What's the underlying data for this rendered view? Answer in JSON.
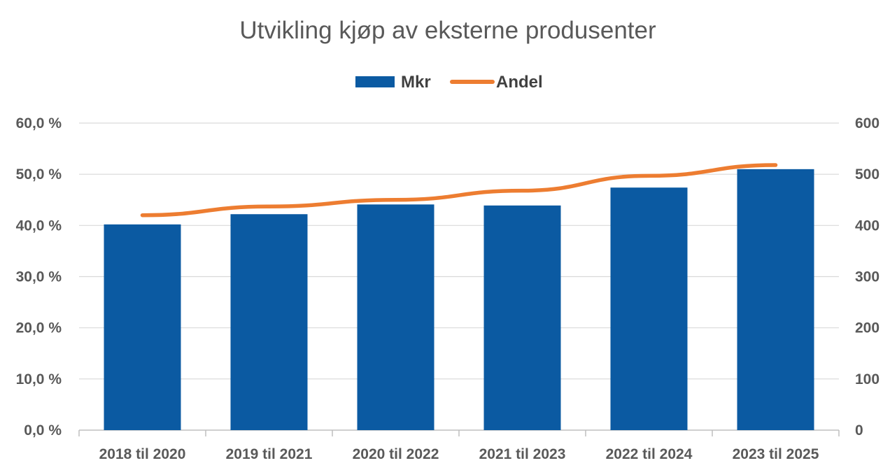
{
  "chart_data": {
    "type": "bar",
    "title": "Utvikling kjøp av eksterne produsenter",
    "categories": [
      "2018 til 2020",
      "2019 til 2021",
      "2020 til 2022",
      "2021 til 2023",
      "2022 til 2024",
      "2023 til 2025"
    ],
    "series": [
      {
        "name": "Mkr",
        "type": "bar",
        "axis": "right",
        "values": [
          402,
          422,
          441,
          439,
          474,
          510
        ],
        "color": "#0B5AA2"
      },
      {
        "name": "Andel",
        "type": "line",
        "axis": "left",
        "values": [
          42.0,
          43.7,
          45.0,
          46.8,
          49.7,
          51.8
        ],
        "color": "#ED7D31"
      }
    ],
    "y_left": {
      "ylim": [
        0,
        60
      ],
      "ticks": [
        "0,0 %",
        "10,0 %",
        "20,0 %",
        "30,0 %",
        "40,0 %",
        "50,0 %",
        "60,0 %"
      ]
    },
    "y_right": {
      "ylim": [
        0,
        600
      ],
      "ticks": [
        "0",
        "100",
        "200",
        "300",
        "400",
        "500",
        "600"
      ]
    },
    "grid": true,
    "legend_position": "top-center"
  }
}
